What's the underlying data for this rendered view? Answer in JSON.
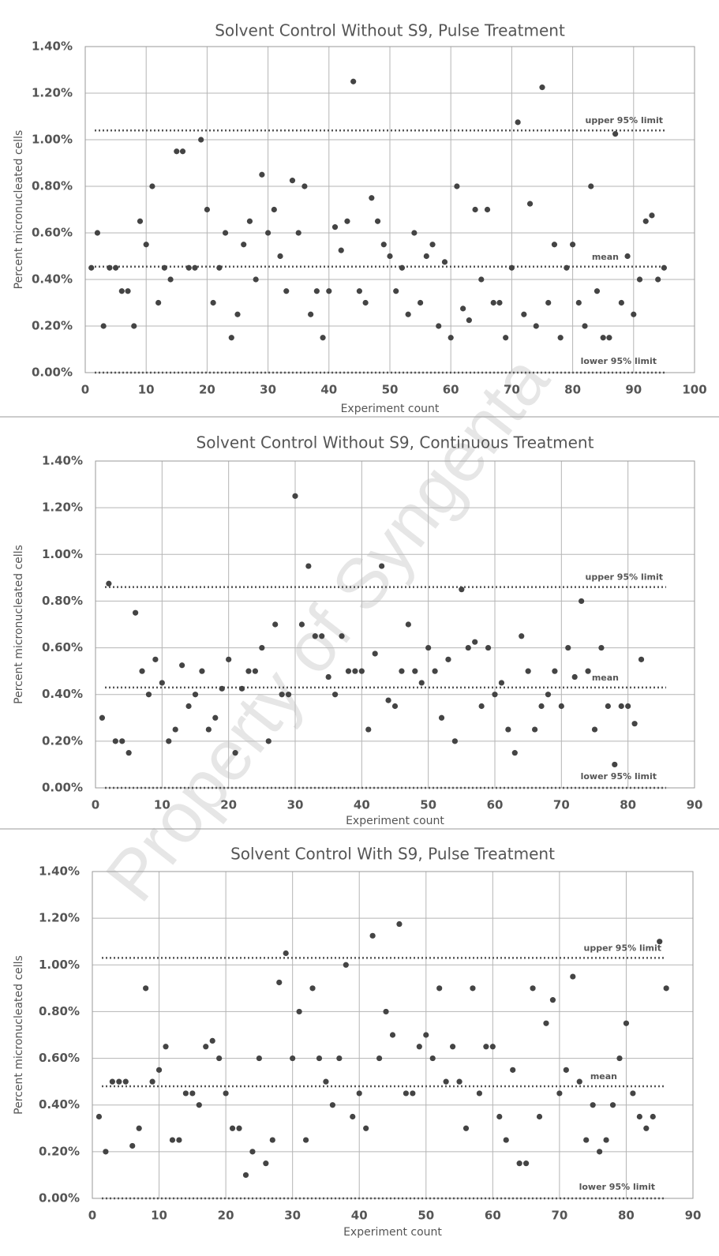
{
  "watermark": "Property of Syngenta",
  "chart_data": [
    {
      "type": "scatter",
      "title": "Solvent Control Without S9, Pulse Treatment",
      "x_label": "Experiment count",
      "y_label": "Percent micronucleated cells",
      "color": "#444444",
      "grid": true,
      "xlim": [
        0,
        100
      ],
      "xticks": [
        0,
        10,
        20,
        30,
        40,
        50,
        60,
        70,
        80,
        90,
        100
      ],
      "ylim": [
        0,
        1.4
      ],
      "yticks": [
        {
          "value": 0,
          "label": "0.00%"
        },
        {
          "value": 0.2,
          "label": "0.20%"
        },
        {
          "value": 0.4,
          "label": "0.40%"
        },
        {
          "value": 0.6,
          "label": "0.60%"
        },
        {
          "value": 0.8,
          "label": "0.80%"
        },
        {
          "value": 1.0,
          "label": "1.00%"
        },
        {
          "value": 1.2,
          "label": "1.20%"
        },
        {
          "value": 1.4,
          "label": "1.40%"
        }
      ],
      "reference_lines": [
        {
          "label": "upper 95% limit",
          "value": 1.04
        },
        {
          "label": "mean",
          "value": 0.455
        },
        {
          "label": "lower 95% limit",
          "value": 0
        }
      ],
      "x": [
        1,
        2,
        3,
        4,
        5,
        6,
        7,
        8,
        9,
        10,
        11,
        12,
        13,
        14,
        15,
        16,
        17,
        18,
        19,
        20,
        21,
        22,
        23,
        24,
        25,
        26,
        27,
        28,
        29,
        30,
        31,
        32,
        33,
        34,
        35,
        36,
        37,
        38,
        39,
        40,
        41,
        42,
        43,
        44,
        45,
        46,
        47,
        48,
        49,
        50,
        51,
        52,
        53,
        54,
        55,
        56,
        57,
        58,
        59,
        60,
        61,
        62,
        63,
        64,
        65,
        66,
        67,
        68,
        69,
        70,
        71,
        72,
        73,
        74,
        75,
        76,
        77,
        78,
        79,
        80,
        81,
        82,
        83,
        84,
        85,
        86,
        87,
        88,
        89,
        90,
        91,
        92,
        93,
        94,
        95
      ],
      "values": [
        0.45,
        0.6,
        0.2,
        0.45,
        0.45,
        0.35,
        0.35,
        0.2,
        0.65,
        0.55,
        0.8,
        0.3,
        0.45,
        0.4,
        0.95,
        0.95,
        0.45,
        0.45,
        1.0,
        0.7,
        0.3,
        0.45,
        0.6,
        0.15,
        0.25,
        0.55,
        0.65,
        0.4,
        0.85,
        0.6,
        0.7,
        0.5,
        0.35,
        0.825,
        0.6,
        0.8,
        0.25,
        0.35,
        0.15,
        0.35,
        0.625,
        0.525,
        0.65,
        1.25,
        0.35,
        0.3,
        0.75,
        0.65,
        0.55,
        0.5,
        0.35,
        0.45,
        0.25,
        0.6,
        0.3,
        0.5,
        0.55,
        0.2,
        0.475,
        0.15,
        0.8,
        0.275,
        0.225,
        0.7,
        0.4,
        0.7,
        0.3,
        0.3,
        0.15,
        0.45,
        1.075,
        0.25,
        0.725,
        0.2,
        1.225,
        0.3,
        0.55,
        0.15,
        0.45,
        0.55,
        0.3,
        0.2,
        0.8,
        0.35,
        0.15,
        0.15,
        1.025,
        0.3,
        0.5,
        0.25,
        0.4,
        0.65,
        0.675,
        0.4,
        0.45
      ]
    },
    {
      "type": "scatter",
      "title": "Solvent Control Without S9, Continuous Treatment",
      "x_label": "Experiment count",
      "y_label": "Percent micronucleated cells",
      "color": "#444444",
      "grid": true,
      "xlim": [
        0,
        90
      ],
      "xticks": [
        0,
        10,
        20,
        30,
        40,
        50,
        60,
        70,
        80,
        90
      ],
      "ylim": [
        0,
        1.4
      ],
      "yticks": [
        {
          "value": 0,
          "label": "0.00%"
        },
        {
          "value": 0.2,
          "label": "0.20%"
        },
        {
          "value": 0.4,
          "label": "0.40%"
        },
        {
          "value": 0.6,
          "label": "0.60%"
        },
        {
          "value": 0.8,
          "label": "0.80%"
        },
        {
          "value": 1.0,
          "label": "1.00%"
        },
        {
          "value": 1.2,
          "label": "1.20%"
        },
        {
          "value": 1.4,
          "label": "1.40%"
        }
      ],
      "reference_lines": [
        {
          "label": "upper 95% limit",
          "value": 0.86
        },
        {
          "label": "mean",
          "value": 0.43
        },
        {
          "label": "lower 95% limit",
          "value": 0
        }
      ],
      "x": [
        1,
        2,
        3,
        4,
        5,
        6,
        7,
        8,
        9,
        10,
        11,
        12,
        13,
        14,
        15,
        16,
        17,
        18,
        19,
        20,
        21,
        22,
        23,
        24,
        25,
        26,
        27,
        28,
        29,
        30,
        31,
        32,
        33,
        34,
        35,
        36,
        37,
        38,
        39,
        40,
        41,
        42,
        43,
        44,
        45,
        46,
        47,
        48,
        49,
        50,
        51,
        52,
        53,
        54,
        55,
        56,
        57,
        58,
        59,
        60,
        61,
        62,
        63,
        64,
        65,
        66,
        67,
        68,
        69,
        70,
        71,
        72,
        73,
        74,
        75,
        76,
        77,
        78,
        79,
        80,
        81,
        82
      ],
      "values": [
        0.3,
        0.875,
        0.2,
        0.2,
        0.15,
        0.75,
        0.5,
        0.4,
        0.55,
        0.45,
        0.2,
        0.25,
        0.525,
        0.35,
        0.4,
        0.5,
        0.25,
        0.3,
        0.425,
        0.55,
        0.15,
        0.425,
        0.5,
        0.5,
        0.6,
        0.2,
        0.7,
        0.4,
        0.4,
        1.25,
        0.7,
        0.95,
        0.65,
        0.65,
        0.475,
        0.4,
        0.65,
        0.5,
        0.5,
        0.5,
        0.25,
        0.575,
        0.95,
        0.375,
        0.35,
        0.5,
        0.7,
        0.5,
        0.45,
        0.6,
        0.5,
        0.3,
        0.55,
        0.2,
        0.85,
        0.6,
        0.625,
        0.35,
        0.6,
        0.4,
        0.45,
        0.25,
        0.15,
        0.65,
        0.5,
        0.25,
        0.35,
        0.4,
        0.5,
        0.35,
        0.6,
        0.475,
        0.8,
        0.5,
        0.25,
        0.6,
        0.35,
        0.1,
        0.35,
        0.35,
        0.275,
        0.55
      ]
    },
    {
      "type": "scatter",
      "title": "Solvent Control With S9, Pulse Treatment",
      "x_label": "Experiment count",
      "y_label": "Percent micronucleated cells",
      "color": "#444444",
      "grid": true,
      "xlim": [
        0,
        90
      ],
      "xticks": [
        0,
        10,
        20,
        30,
        40,
        50,
        60,
        70,
        80,
        90
      ],
      "ylim": [
        0,
        1.4
      ],
      "yticks": [
        {
          "value": 0,
          "label": "0.00%"
        },
        {
          "value": 0.2,
          "label": "0.20%"
        },
        {
          "value": 0.4,
          "label": "0.40%"
        },
        {
          "value": 0.6,
          "label": "0.60%"
        },
        {
          "value": 0.8,
          "label": "0.80%"
        },
        {
          "value": 1.0,
          "label": "1.00%"
        },
        {
          "value": 1.2,
          "label": "1.20%"
        },
        {
          "value": 1.4,
          "label": "1.40%"
        }
      ],
      "reference_lines": [
        {
          "label": "upper 95% limit",
          "value": 1.03
        },
        {
          "label": "mean",
          "value": 0.48
        },
        {
          "label": "lower 95% limit",
          "value": 0
        }
      ],
      "x": [
        1,
        2,
        3,
        4,
        5,
        6,
        7,
        8,
        9,
        10,
        11,
        12,
        13,
        14,
        15,
        16,
        17,
        18,
        19,
        20,
        21,
        22,
        23,
        24,
        25,
        26,
        27,
        28,
        29,
        30,
        31,
        32,
        33,
        34,
        35,
        36,
        37,
        38,
        39,
        40,
        41,
        42,
        43,
        44,
        45,
        46,
        47,
        48,
        49,
        50,
        51,
        52,
        53,
        54,
        55,
        56,
        57,
        58,
        59,
        60,
        61,
        62,
        63,
        64,
        65,
        66,
        67,
        68,
        69,
        70,
        71,
        72,
        73,
        74,
        75,
        76,
        77,
        78,
        79,
        80,
        81,
        82,
        83,
        84,
        85,
        86
      ],
      "values": [
        0.35,
        0.2,
        0.5,
        0.5,
        0.5,
        0.225,
        0.3,
        0.9,
        0.5,
        0.55,
        0.65,
        0.25,
        0.25,
        0.45,
        0.45,
        0.4,
        0.65,
        0.675,
        0.6,
        0.45,
        0.3,
        0.3,
        0.1,
        0.2,
        0.6,
        0.15,
        0.25,
        0.925,
        1.05,
        0.6,
        0.8,
        0.25,
        0.9,
        0.6,
        0.5,
        0.4,
        0.6,
        1.0,
        0.35,
        0.45,
        0.3,
        1.125,
        0.6,
        0.8,
        0.7,
        1.175,
        0.45,
        0.45,
        0.65,
        0.7,
        0.6,
        0.9,
        0.5,
        0.65,
        0.5,
        0.3,
        0.9,
        0.45,
        0.65,
        0.65,
        0.35,
        0.25,
        0.55,
        0.15,
        0.15,
        0.9,
        0.35,
        0.75,
        0.85,
        0.45,
        0.55,
        0.95,
        0.5,
        0.25,
        0.4,
        0.2,
        0.25,
        0.4,
        0.6,
        0.75,
        0.45,
        0.35,
        0.3,
        0.35,
        1.1,
        0.9
      ]
    }
  ]
}
